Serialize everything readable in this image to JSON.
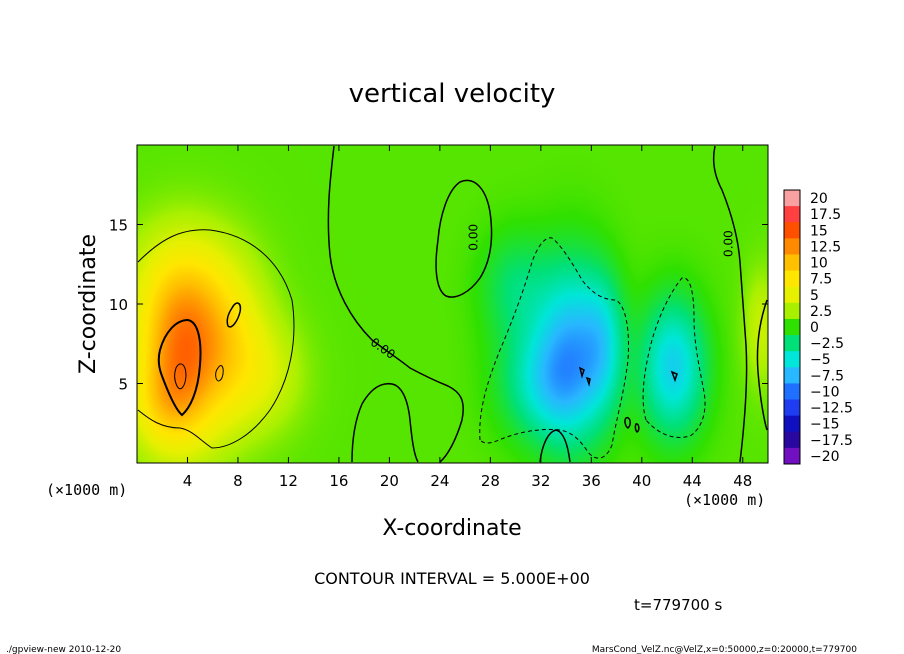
{
  "chart_data": {
    "type": "heatmap",
    "title": "vertical velocity",
    "xlabel": "X-coordinate",
    "ylabel": "Z-coordinate",
    "x_unit_label": "(×1000 m)",
    "y_unit_label": "(×1000 m)",
    "xlim": [
      0,
      50
    ],
    "ylim": [
      0,
      20
    ],
    "xticks": [
      "4",
      "8",
      "12",
      "16",
      "20",
      "24",
      "28",
      "32",
      "36",
      "40",
      "44",
      "48"
    ],
    "xtick_values": [
      4,
      8,
      12,
      16,
      20,
      24,
      28,
      32,
      36,
      40,
      44,
      48
    ],
    "yticks": [
      "5",
      "10",
      "15"
    ],
    "ytick_values": [
      5,
      10,
      15
    ],
    "contour_interval_label": "CONTOUR INTERVAL = 5.000E+00",
    "time_label": "t=779700 s",
    "contour_labels": [
      {
        "text": "0.00",
        "x": 27.0,
        "y": 14.2,
        "angle": -90
      },
      {
        "text": "0.00",
        "x": 47.2,
        "y": 13.8,
        "angle": -90
      },
      {
        "text": "0.00",
        "x": 19.3,
        "y": 7.0,
        "angle": 35
      }
    ],
    "colorbar": {
      "labels": [
        "20",
        "17.5",
        "15",
        "12.5",
        "10",
        "7.5",
        "5",
        "2.5",
        "0",
        "−2.5",
        "−5",
        "−7.5",
        "−10",
        "−12.5",
        "−15",
        "−17.5",
        "−20"
      ],
      "colors": [
        "#f9a0a0",
        "#ff4040",
        "#ff5000",
        "#ff8a00",
        "#ffc000",
        "#ffe600",
        "#e6f000",
        "#a8f000",
        "#30e000",
        "#00e078",
        "#00e6d8",
        "#28b8ff",
        "#2070ff",
        "#1e3cf0",
        "#1010c0",
        "#2808a0",
        "#7010c0"
      ]
    },
    "blobs": [
      {
        "x": 3.5,
        "y": 6.5,
        "sx": 2.4,
        "sy": 3.8,
        "amp": 10.5
      },
      {
        "x": 3.8,
        "y": 11.0,
        "sx": 3.2,
        "sy": 3.0,
        "amp": 4.0
      },
      {
        "x": 7.5,
        "y": 7.0,
        "sx": 2.2,
        "sy": 3.5,
        "amp": 4.5
      },
      {
        "x": 10.5,
        "y": 5.5,
        "sx": 2.2,
        "sy": 2.5,
        "amp": 2.5
      },
      {
        "x": 2.0,
        "y": 3.5,
        "sx": 2.0,
        "sy": 2.0,
        "amp": 3.0
      },
      {
        "x": 34.5,
        "y": 7.0,
        "sx": 2.0,
        "sy": 4.0,
        "amp": -7.5
      },
      {
        "x": 32.0,
        "y": 5.0,
        "sx": 2.4,
        "sy": 2.5,
        "amp": -4.5
      },
      {
        "x": 37.0,
        "y": 7.5,
        "sx": 1.2,
        "sy": 3.0,
        "amp": -4.0
      },
      {
        "x": 42.5,
        "y": 6.0,
        "sx": 1.8,
        "sy": 3.0,
        "amp": -7.0
      },
      {
        "x": 30.0,
        "y": 11.0,
        "sx": 2.0,
        "sy": 2.5,
        "amp": -3.0
      },
      {
        "x": 49.5,
        "y": 8.5,
        "sx": 1.0,
        "sy": 2.5,
        "amp": 3.0
      }
    ]
  },
  "footer": {
    "left": "./gpview-new   2010-12-20",
    "right": "MarsCond_VelZ.nc@VelZ,x=0:50000,z=0:20000,t=779700"
  }
}
